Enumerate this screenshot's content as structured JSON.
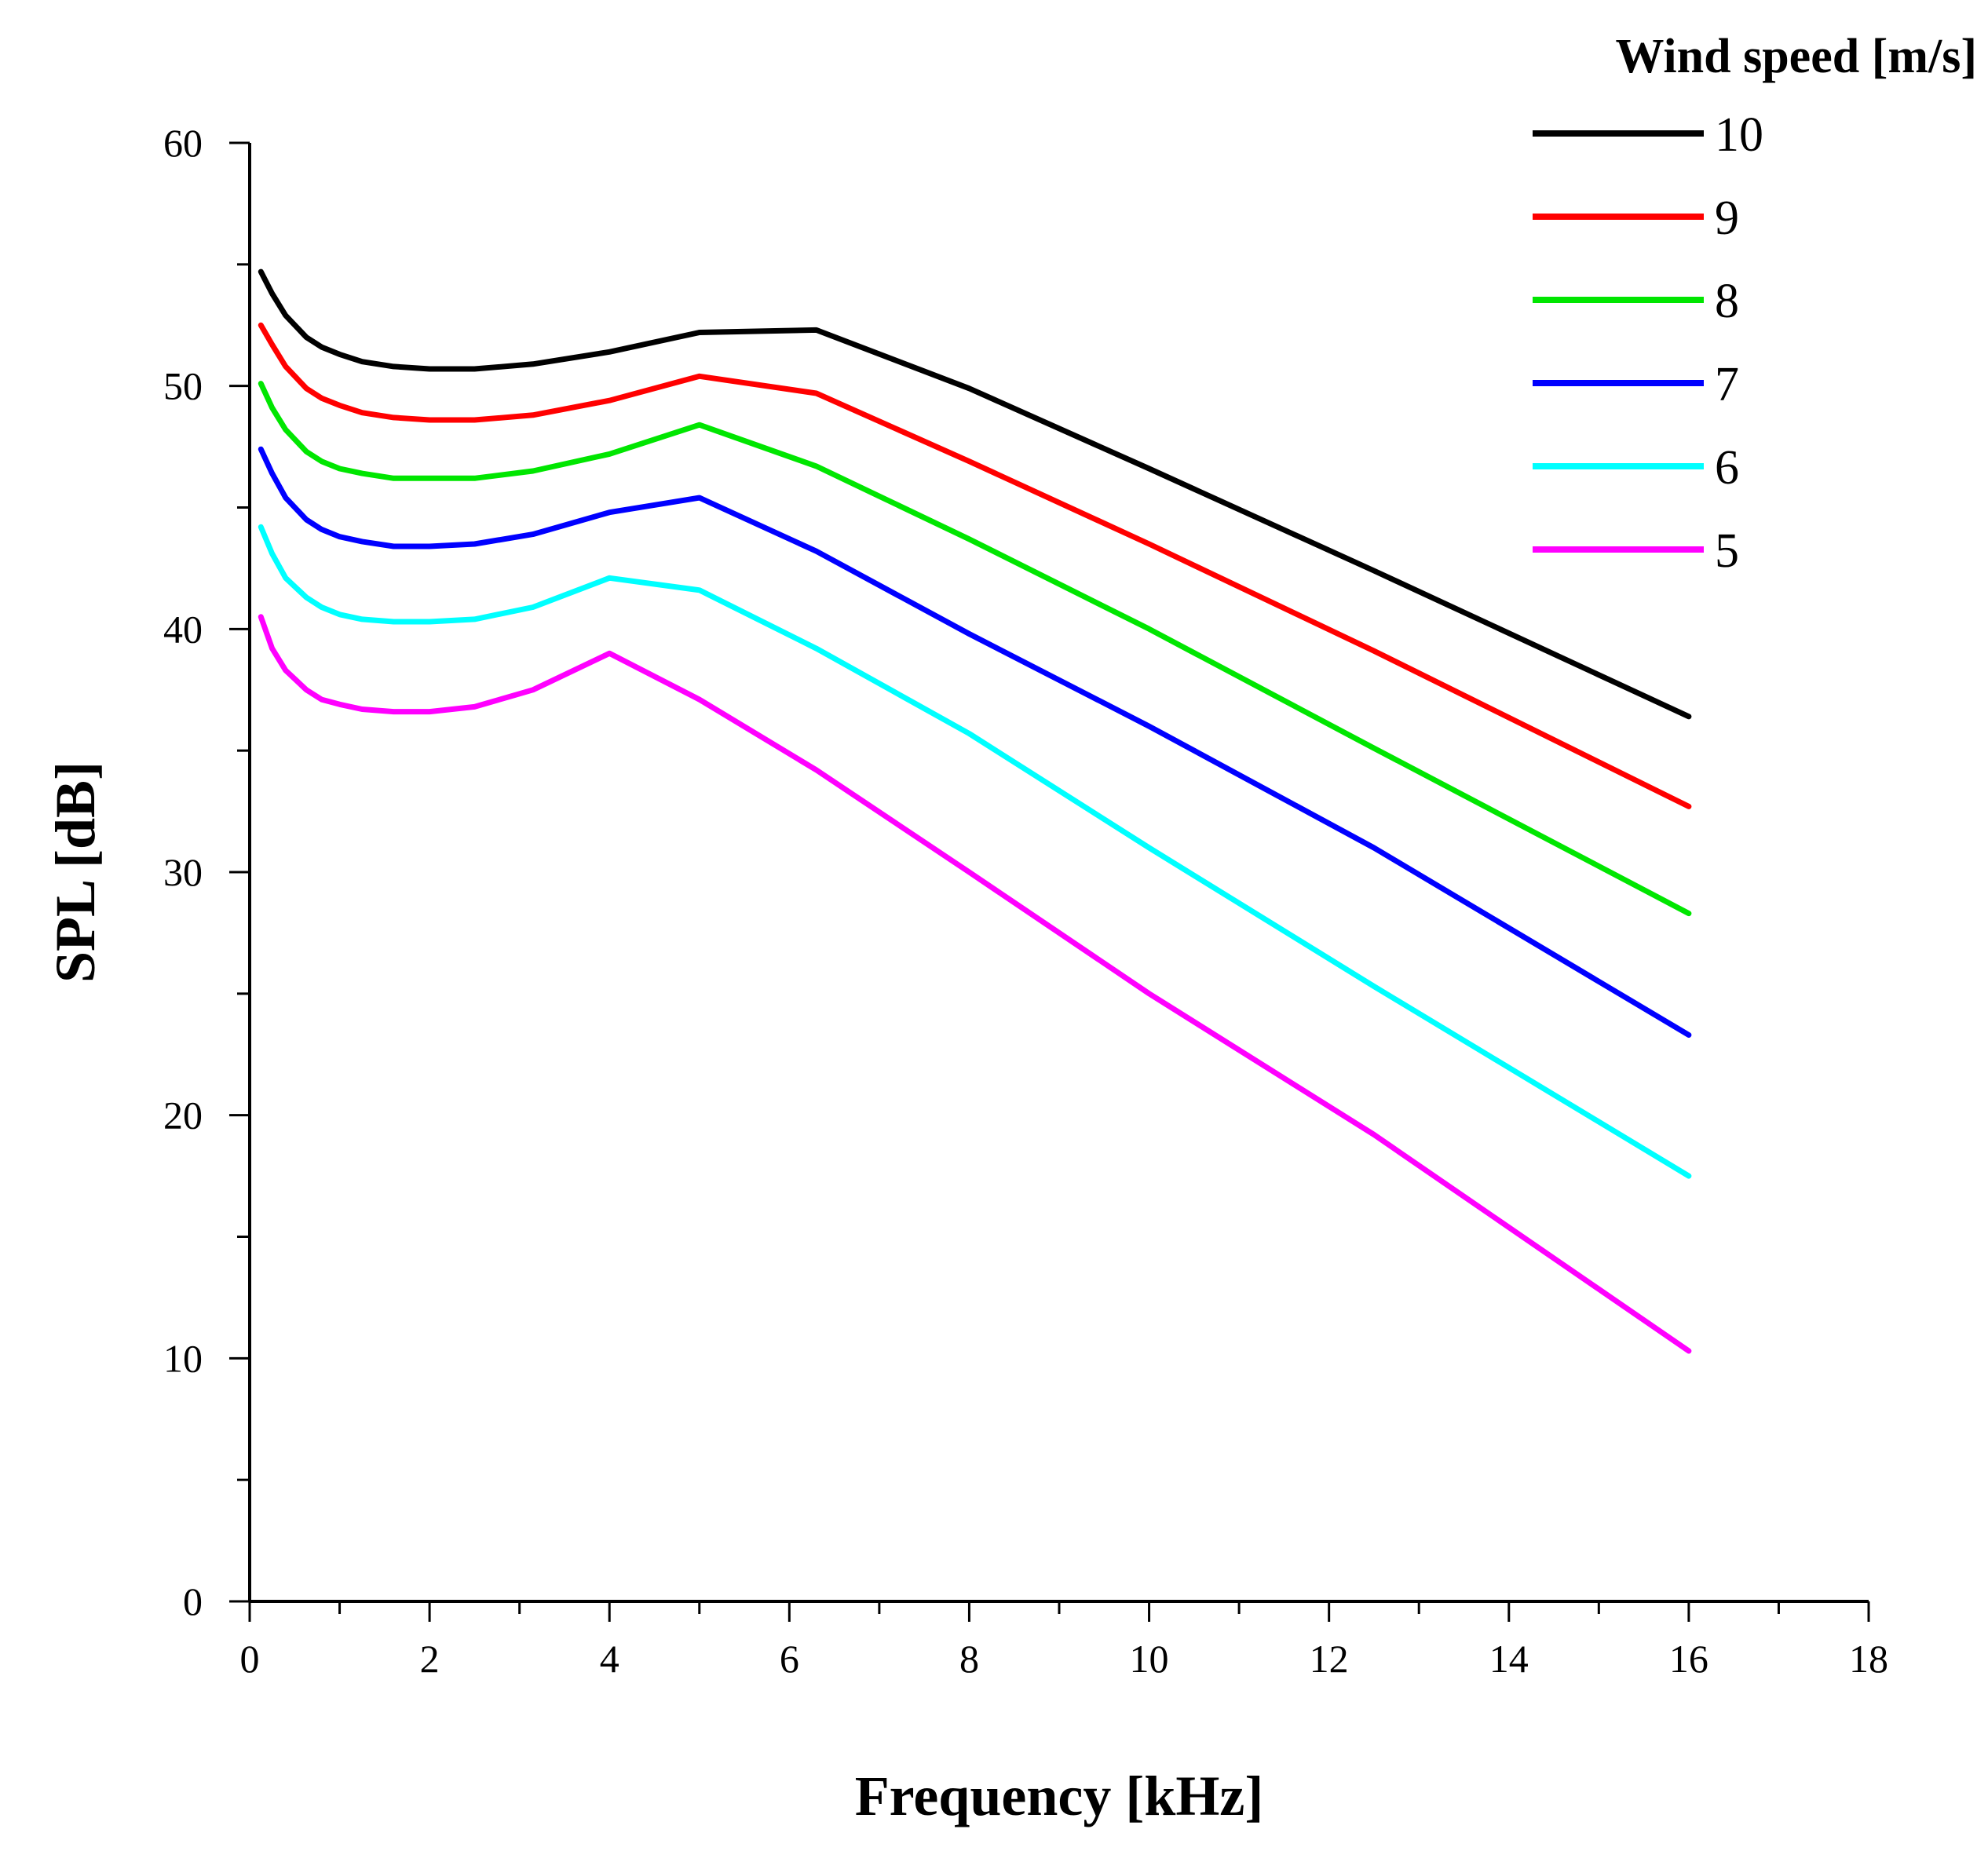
{
  "chart_data": {
    "type": "line",
    "title": "",
    "xlabel": "Frequency [kHz]",
    "ylabel": "SPL [dB]",
    "xlim": [
      0,
      18
    ],
    "ylim": [
      0,
      60
    ],
    "xticks": [
      0,
      2,
      4,
      6,
      8,
      10,
      12,
      14,
      16,
      18
    ],
    "yticks": [
      0,
      10,
      20,
      30,
      40,
      50,
      60
    ],
    "grid": false,
    "legend": {
      "title": "Wind speed [m/s]",
      "position": "top-right"
    },
    "x": [
      0.125,
      0.25,
      0.4,
      0.63,
      0.8,
      1.0,
      1.25,
      1.6,
      2.0,
      2.5,
      3.15,
      4.0,
      5.0,
      6.3,
      8.0,
      10.0,
      12.5,
      16.0
    ],
    "series": [
      {
        "name": "10",
        "color": "#000000",
        "values": [
          54.7,
          53.8,
          52.9,
          52.0,
          51.6,
          51.3,
          51.0,
          50.8,
          50.7,
          50.7,
          50.9,
          51.4,
          52.2,
          52.3,
          49.9,
          46.6,
          42.4,
          36.4
        ]
      },
      {
        "name": "9",
        "color": "#ff0000",
        "values": [
          52.5,
          51.7,
          50.8,
          49.9,
          49.5,
          49.2,
          48.9,
          48.7,
          48.6,
          48.6,
          48.8,
          49.4,
          50.4,
          49.7,
          46.9,
          43.5,
          39.1,
          32.7
        ]
      },
      {
        "name": "8",
        "color": "#00e600",
        "values": [
          50.1,
          49.1,
          48.2,
          47.3,
          46.9,
          46.6,
          46.4,
          46.2,
          46.2,
          46.2,
          46.5,
          47.2,
          48.4,
          46.7,
          43.7,
          40.0,
          35.1,
          28.3
        ]
      },
      {
        "name": "7",
        "color": "#0000ff",
        "values": [
          47.4,
          46.4,
          45.4,
          44.5,
          44.1,
          43.8,
          43.6,
          43.4,
          43.4,
          43.5,
          43.9,
          44.8,
          45.4,
          43.2,
          39.8,
          36.0,
          31.0,
          23.3
        ]
      },
      {
        "name": "6",
        "color": "#00ffff",
        "values": [
          44.2,
          43.1,
          42.1,
          41.3,
          40.9,
          40.6,
          40.4,
          40.3,
          40.3,
          40.4,
          40.9,
          42.1,
          41.6,
          39.2,
          35.7,
          31.0,
          25.3,
          17.5
        ]
      },
      {
        "name": "5",
        "color": "#ff00ff",
        "values": [
          40.5,
          39.2,
          38.3,
          37.5,
          37.1,
          36.9,
          36.7,
          36.6,
          36.6,
          36.8,
          37.5,
          39.0,
          37.1,
          34.2,
          30.0,
          25.0,
          19.2,
          10.3
        ]
      }
    ]
  }
}
